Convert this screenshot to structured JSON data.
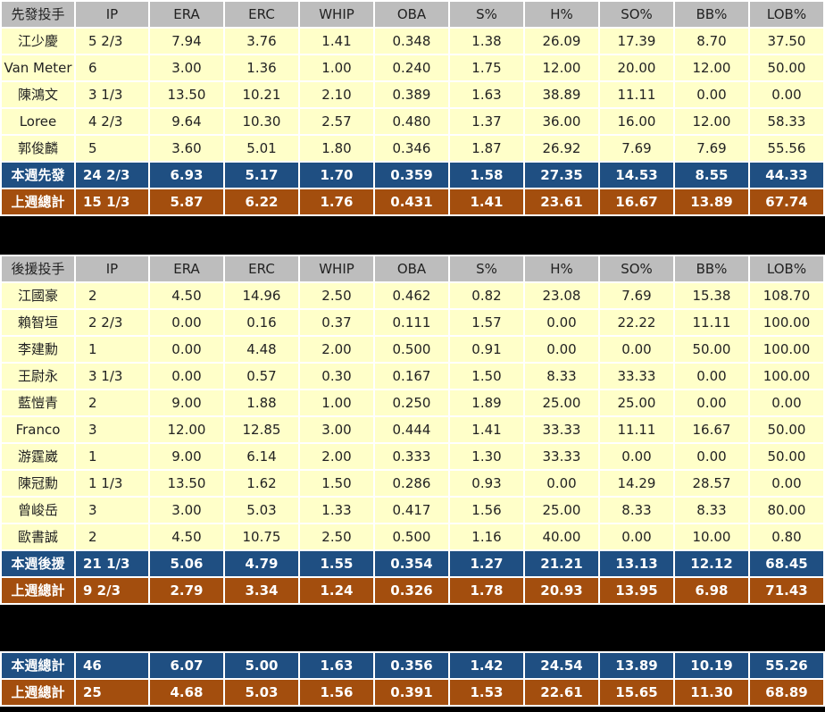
{
  "headers": [
    "IP",
    "ERA",
    "ERC",
    "WHIP",
    "OBA",
    "S%",
    "H%",
    "SO%",
    "BB%",
    "LOB%"
  ],
  "starters": {
    "title": "先發投手",
    "rows": [
      [
        "江少慶",
        "5 2/3",
        "7.94",
        "3.76",
        "1.41",
        "0.348",
        "1.38",
        "26.09",
        "17.39",
        "8.70",
        "37.50"
      ],
      [
        "Van Meter",
        "6",
        "3.00",
        "1.36",
        "1.00",
        "0.240",
        "1.75",
        "12.00",
        "20.00",
        "12.00",
        "50.00"
      ],
      [
        "陳鴻文",
        "3 1/3",
        "13.50",
        "10.21",
        "2.10",
        "0.389",
        "1.63",
        "38.89",
        "11.11",
        "0.00",
        "0.00"
      ],
      [
        "Loree",
        "4 2/3",
        "9.64",
        "10.30",
        "2.57",
        "0.480",
        "1.37",
        "36.00",
        "16.00",
        "12.00",
        "58.33"
      ],
      [
        "郭俊麟",
        "5",
        "3.60",
        "5.01",
        "1.80",
        "0.346",
        "1.87",
        "26.92",
        "7.69",
        "7.69",
        "55.56"
      ]
    ],
    "this_week": [
      "本週先發",
      "24 2/3",
      "6.93",
      "5.17",
      "1.70",
      "0.359",
      "1.58",
      "27.35",
      "14.53",
      "8.55",
      "44.33"
    ],
    "last_week": [
      "上週總計",
      "15 1/3",
      "5.87",
      "6.22",
      "1.76",
      "0.431",
      "1.41",
      "23.61",
      "16.67",
      "13.89",
      "67.74"
    ]
  },
  "relievers": {
    "title": "後援投手",
    "rows": [
      [
        "江國豪",
        "2",
        "4.50",
        "14.96",
        "2.50",
        "0.462",
        "0.82",
        "23.08",
        "7.69",
        "15.38",
        "108.70"
      ],
      [
        "賴智垣",
        "2 2/3",
        "0.00",
        "0.16",
        "0.37",
        "0.111",
        "1.57",
        "0.00",
        "22.22",
        "11.11",
        "100.00"
      ],
      [
        "李建勳",
        "1",
        "0.00",
        "4.48",
        "2.00",
        "0.500",
        "0.91",
        "0.00",
        "0.00",
        "50.00",
        "100.00"
      ],
      [
        "王尉永",
        "3 1/3",
        "0.00",
        "0.57",
        "0.30",
        "0.167",
        "1.50",
        "8.33",
        "33.33",
        "0.00",
        "100.00"
      ],
      [
        "藍愷青",
        "2",
        "9.00",
        "1.88",
        "1.00",
        "0.250",
        "1.89",
        "25.00",
        "25.00",
        "0.00",
        "0.00"
      ],
      [
        "Franco",
        "3",
        "12.00",
        "12.85",
        "3.00",
        "0.444",
        "1.41",
        "33.33",
        "11.11",
        "16.67",
        "50.00"
      ],
      [
        "游霆崴",
        "1",
        "9.00",
        "6.14",
        "2.00",
        "0.333",
        "1.30",
        "33.33",
        "0.00",
        "0.00",
        "50.00"
      ],
      [
        "陳冠勳",
        "1 1/3",
        "13.50",
        "1.62",
        "1.50",
        "0.286",
        "0.93",
        "0.00",
        "14.29",
        "28.57",
        "0.00"
      ],
      [
        "曾峻岳",
        "3",
        "3.00",
        "5.03",
        "1.33",
        "0.417",
        "1.56",
        "25.00",
        "8.33",
        "8.33",
        "80.00"
      ],
      [
        "歐書誠",
        "2",
        "4.50",
        "10.75",
        "2.50",
        "0.500",
        "1.16",
        "40.00",
        "0.00",
        "10.00",
        "0.80"
      ]
    ],
    "this_week": [
      "本週後援",
      "21 1/3",
      "5.06",
      "4.79",
      "1.55",
      "0.354",
      "1.27",
      "21.21",
      "13.13",
      "12.12",
      "68.45"
    ],
    "last_week": [
      "上週總計",
      "9 2/3",
      "2.79",
      "3.34",
      "1.24",
      "0.326",
      "1.78",
      "20.93",
      "13.95",
      "6.98",
      "71.43"
    ]
  },
  "totals": {
    "this_week": [
      "本週總計",
      "46",
      "6.07",
      "5.00",
      "1.63",
      "0.356",
      "1.42",
      "24.54",
      "13.89",
      "10.19",
      "55.26"
    ],
    "last_week": [
      "上週總計",
      "25",
      "4.68",
      "5.03",
      "1.56",
      "0.391",
      "1.53",
      "22.61",
      "15.65",
      "11.30",
      "68.89"
    ]
  },
  "colors": {
    "header_bg": "#bdbdbd",
    "row_bg": "#ffffc9",
    "this_week_bg": "#1f4f82",
    "last_week_bg": "#a34e0e",
    "separator": "#000000"
  }
}
